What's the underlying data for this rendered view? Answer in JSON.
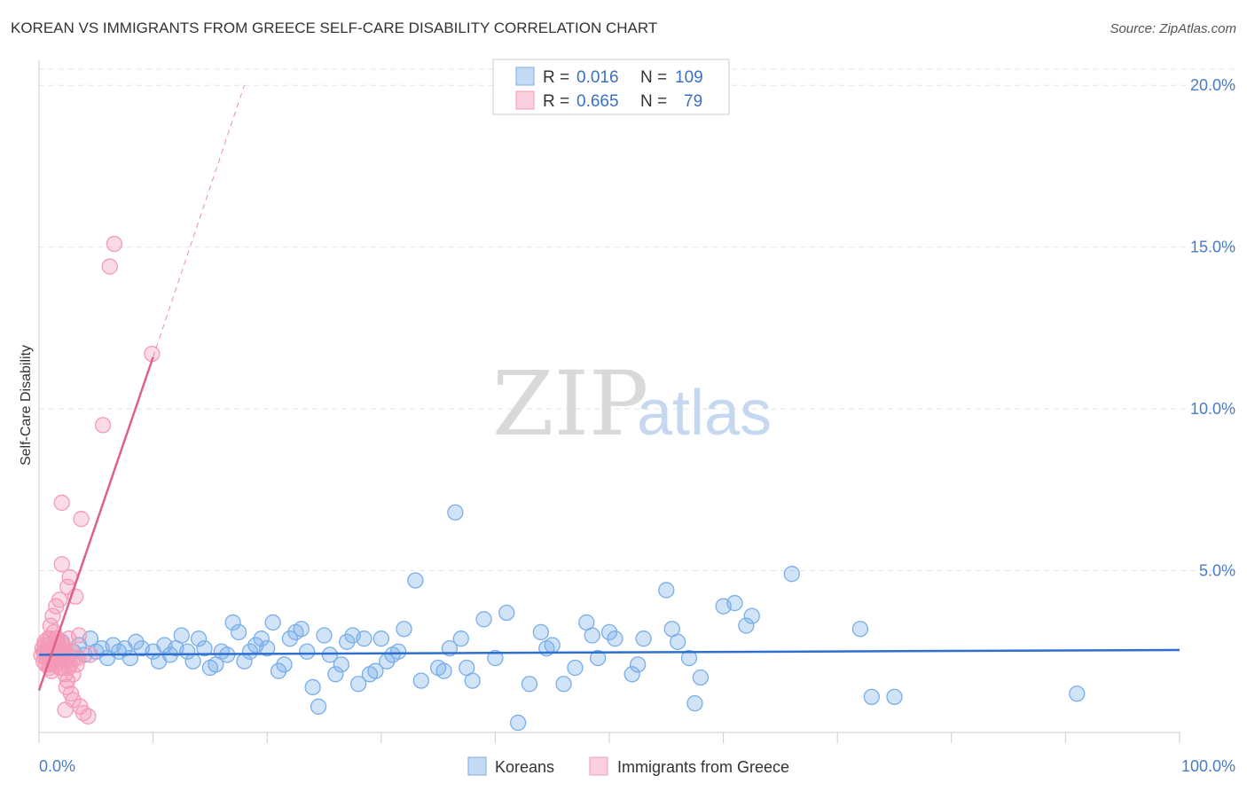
{
  "header": {
    "title": "KOREAN VS IMMIGRANTS FROM GREECE SELF-CARE DISABILITY CORRELATION CHART",
    "source": "Source: ZipAtlas.com"
  },
  "watermark": {
    "zip": "ZIP",
    "atlas": "atlas"
  },
  "chart_data": {
    "type": "scatter",
    "title": "KOREAN VS IMMIGRANTS FROM GREECE SELF-CARE DISABILITY CORRELATION CHART",
    "xlabel": "",
    "ylabel": "Self-Care Disability",
    "xlim": [
      0,
      100
    ],
    "ylim": [
      0,
      20.5
    ],
    "x_tick_labels": [
      "0.0%",
      "100.0%"
    ],
    "y_ticks": [
      5,
      10,
      15,
      20
    ],
    "y_tick_labels": [
      "5.0%",
      "10.0%",
      "15.0%",
      "20.0%"
    ],
    "grid": true,
    "legend": [
      {
        "r_label": "R =",
        "r_value": "0.016",
        "n_label": "N =",
        "n_value": "109"
      },
      {
        "r_label": "R =",
        "r_value": "0.665",
        "n_label": "N =",
        "n_value": "79"
      }
    ],
    "series": [
      {
        "name": "Koreans",
        "color": "#7aaee8",
        "line_color": "#2f6fcf",
        "trend": {
          "x": [
            0,
            100
          ],
          "y": [
            2.4,
            2.55
          ]
        },
        "points": [
          [
            0.5,
            2.5
          ],
          [
            1,
            2.6
          ],
          [
            1.5,
            2.4
          ],
          [
            2,
            2.8
          ],
          [
            2.5,
            2.3
          ],
          [
            3,
            2.5
          ],
          [
            3.5,
            2.7
          ],
          [
            4,
            2.4
          ],
          [
            5,
            2.5
          ],
          [
            5.5,
            2.6
          ],
          [
            6,
            2.3
          ],
          [
            6.5,
            2.7
          ],
          [
            7,
            2.5
          ],
          [
            7.5,
            2.6
          ],
          [
            8,
            2.3
          ],
          [
            8.5,
            2.8
          ],
          [
            9,
            2.6
          ],
          [
            10,
            2.5
          ],
          [
            10.5,
            2.2
          ],
          [
            11,
            2.7
          ],
          [
            11.5,
            2.4
          ],
          [
            12,
            2.6
          ],
          [
            12.5,
            3.0
          ],
          [
            13,
            2.5
          ],
          [
            13.5,
            2.2
          ],
          [
            14,
            2.9
          ],
          [
            14.5,
            2.6
          ],
          [
            15,
            2.0
          ],
          [
            15.5,
            2.1
          ],
          [
            16,
            2.5
          ],
          [
            16.5,
            2.4
          ],
          [
            17,
            3.4
          ],
          [
            17.5,
            3.1
          ],
          [
            18,
            2.2
          ],
          [
            18.5,
            2.5
          ],
          [
            19,
            2.7
          ],
          [
            19.5,
            2.9
          ],
          [
            20,
            2.6
          ],
          [
            20.5,
            3.4
          ],
          [
            21,
            1.9
          ],
          [
            21.5,
            2.1
          ],
          [
            22,
            2.9
          ],
          [
            22.5,
            3.1
          ],
          [
            23,
            3.2
          ],
          [
            23.5,
            2.5
          ],
          [
            24,
            1.4
          ],
          [
            24.5,
            0.8
          ],
          [
            25,
            3.0
          ],
          [
            25.5,
            2.4
          ],
          [
            26,
            1.8
          ],
          [
            26.5,
            2.1
          ],
          [
            27,
            2.8
          ],
          [
            27.5,
            3.0
          ],
          [
            28,
            1.5
          ],
          [
            28.5,
            2.9
          ],
          [
            29,
            1.8
          ],
          [
            29.5,
            1.9
          ],
          [
            30,
            2.9
          ],
          [
            30.5,
            2.2
          ],
          [
            31,
            2.4
          ],
          [
            31.5,
            2.5
          ],
          [
            32,
            3.2
          ],
          [
            33,
            4.7
          ],
          [
            33.5,
            1.6
          ],
          [
            35,
            2.0
          ],
          [
            35.5,
            1.9
          ],
          [
            36,
            2.6
          ],
          [
            36.5,
            6.8
          ],
          [
            37,
            2.9
          ],
          [
            37.5,
            2.0
          ],
          [
            38,
            1.6
          ],
          [
            39,
            3.5
          ],
          [
            40,
            2.3
          ],
          [
            41,
            3.7
          ],
          [
            42,
            0.3
          ],
          [
            43,
            1.5
          ],
          [
            44,
            3.1
          ],
          [
            44.5,
            2.6
          ],
          [
            45,
            2.7
          ],
          [
            46,
            1.5
          ],
          [
            47,
            2.0
          ],
          [
            48,
            3.4
          ],
          [
            48.5,
            3.0
          ],
          [
            49,
            2.3
          ],
          [
            50,
            3.1
          ],
          [
            50.5,
            2.9
          ],
          [
            52,
            1.8
          ],
          [
            52.5,
            2.1
          ],
          [
            53,
            2.9
          ],
          [
            55,
            4.4
          ],
          [
            55.5,
            3.2
          ],
          [
            56,
            2.8
          ],
          [
            57,
            2.3
          ],
          [
            57.5,
            0.9
          ],
          [
            58,
            1.7
          ],
          [
            60,
            3.9
          ],
          [
            61,
            4.0
          ],
          [
            62,
            3.3
          ],
          [
            62.5,
            3.6
          ],
          [
            66,
            4.9
          ],
          [
            72,
            3.2
          ],
          [
            73,
            1.1
          ],
          [
            75,
            1.1
          ],
          [
            91,
            1.2
          ],
          [
            4.5,
            2.9
          ]
        ]
      },
      {
        "name": "Immigrants from Greece",
        "color": "#f49ab6",
        "line_color": "#e0608c",
        "trend": {
          "x": [
            0,
            10
          ],
          "y": [
            1.3,
            11.6
          ],
          "x_dash_end": 18,
          "y_dash_end": 20
        },
        "points": [
          [
            0.2,
            2.4
          ],
          [
            0.3,
            2.6
          ],
          [
            0.4,
            2.2
          ],
          [
            0.5,
            2.8
          ],
          [
            0.6,
            2.3
          ],
          [
            0.7,
            2.5
          ],
          [
            0.8,
            2.7
          ],
          [
            0.9,
            2.1
          ],
          [
            1.0,
            2.9
          ],
          [
            1.1,
            2.4
          ],
          [
            1.2,
            2.6
          ],
          [
            1.3,
            3.1
          ],
          [
            1.4,
            2.3
          ],
          [
            1.5,
            2.5
          ],
          [
            1.6,
            2.8
          ],
          [
            1.7,
            2.2
          ],
          [
            1.8,
            2.6
          ],
          [
            1.9,
            2.4
          ],
          [
            2.0,
            2.0
          ],
          [
            2.1,
            2.7
          ],
          [
            2.2,
            2.5
          ],
          [
            2.3,
            1.8
          ],
          [
            2.4,
            2.3
          ],
          [
            2.5,
            1.6
          ],
          [
            2.6,
            2.9
          ],
          [
            2.7,
            2.1
          ],
          [
            2.8,
            1.2
          ],
          [
            2.9,
            2.5
          ],
          [
            3.0,
            1.0
          ],
          [
            3.1,
            2.3
          ],
          [
            0.4,
            2.5
          ],
          [
            0.6,
            2.1
          ],
          [
            0.8,
            2.9
          ],
          [
            1.0,
            2.3
          ],
          [
            1.2,
            2.2
          ],
          [
            1.4,
            2.7
          ],
          [
            1.6,
            2.4
          ],
          [
            1.8,
            2.0
          ],
          [
            2.0,
            2.3
          ],
          [
            2.2,
            2.6
          ],
          [
            0.5,
            2.7
          ],
          [
            0.7,
            2.4
          ],
          [
            0.9,
            2.6
          ],
          [
            1.1,
            2.2
          ],
          [
            1.3,
            2.5
          ],
          [
            1.5,
            2.9
          ],
          [
            1.7,
            2.6
          ],
          [
            1.9,
            2.2
          ],
          [
            2.1,
            2.4
          ],
          [
            2.3,
            2.5
          ],
          [
            1.0,
            3.3
          ],
          [
            1.2,
            3.6
          ],
          [
            1.5,
            3.9
          ],
          [
            1.8,
            4.1
          ],
          [
            2.0,
            5.2
          ],
          [
            2.5,
            4.5
          ],
          [
            2.7,
            4.8
          ],
          [
            3.2,
            4.2
          ],
          [
            3.5,
            3.0
          ],
          [
            1.6,
            2.9
          ],
          [
            2.0,
            7.1
          ],
          [
            3.7,
            6.6
          ],
          [
            5.6,
            9.5
          ],
          [
            6.2,
            14.4
          ],
          [
            6.6,
            15.1
          ],
          [
            9.9,
            11.7
          ],
          [
            2.3,
            0.7
          ],
          [
            3.6,
            0.8
          ],
          [
            3.9,
            0.6
          ],
          [
            4.3,
            0.5
          ],
          [
            2.4,
            1.4
          ],
          [
            3.0,
            1.8
          ],
          [
            3.3,
            2.1
          ],
          [
            2.6,
            2.0
          ],
          [
            1.1,
            1.9
          ],
          [
            3.4,
            2.3
          ],
          [
            4.5,
            2.4
          ],
          [
            0.9,
            2.0
          ],
          [
            1.4,
            2.1
          ]
        ]
      }
    ]
  },
  "bottom_legend": [
    "Koreans",
    "Immigrants from Greece"
  ]
}
